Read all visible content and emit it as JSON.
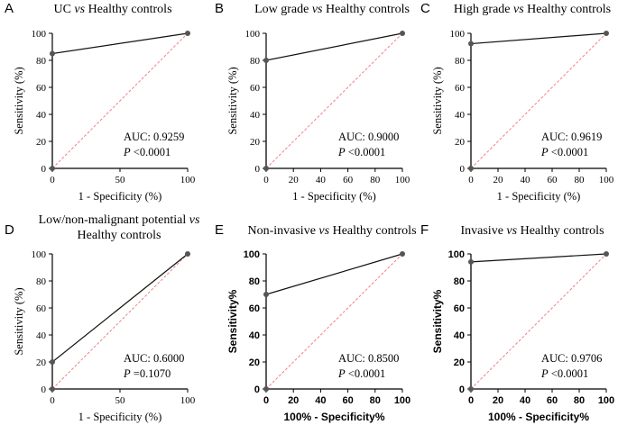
{
  "figure": {
    "style": {
      "axis_color": "#000000",
      "roc_line_color": "#111111",
      "point_color": "#555555",
      "reference_color": "#f08080"
    }
  },
  "chart_data": [
    {
      "type": "line",
      "panel_letter": "A",
      "title_parts": [
        {
          "t": "UC ",
          "i": false
        },
        {
          "t": "vs",
          "i": true
        },
        {
          "t": " Healthy controls",
          "i": false
        }
      ],
      "xlabel": "1 - Specificity (%)",
      "ylabel": "Sensitivity (%)",
      "xlim": [
        0,
        100
      ],
      "ylim": [
        0,
        100
      ],
      "x_ticks": [
        "0",
        "50",
        "100"
      ],
      "x_tick_values": [
        0,
        50,
        100
      ],
      "y_ticks": [
        "0",
        "20",
        "40",
        "60",
        "80",
        "100"
      ],
      "y_tick_values": [
        0,
        20,
        40,
        60,
        80,
        100
      ],
      "series": [
        {
          "name": "ROC",
          "x": [
            0,
            0,
            100
          ],
          "y": [
            0,
            85,
            100
          ]
        },
        {
          "name": "Reference",
          "x": [
            0,
            100
          ],
          "y": [
            0,
            100
          ]
        }
      ],
      "annotation": {
        "auc": "AUC: 0.9259",
        "p_label": "P",
        "p_value": " <0.0001"
      }
    },
    {
      "type": "line",
      "panel_letter": "B",
      "title_parts": [
        {
          "t": "Low grade ",
          "i": false
        },
        {
          "t": "vs",
          "i": true
        },
        {
          "t": " Healthy controls",
          "i": false
        }
      ],
      "xlabel": "1 - Specificity (%)",
      "ylabel": "Sensitivity (%)",
      "xlim": [
        0,
        100
      ],
      "ylim": [
        0,
        100
      ],
      "x_ticks": [
        "0",
        "20",
        "40",
        "60",
        "80",
        "100"
      ],
      "x_tick_values": [
        0,
        20,
        40,
        60,
        80,
        100
      ],
      "y_ticks": [
        "0",
        "20",
        "40",
        "60",
        "80",
        "100"
      ],
      "y_tick_values": [
        0,
        20,
        40,
        60,
        80,
        100
      ],
      "series": [
        {
          "name": "ROC",
          "x": [
            0,
            0,
            100
          ],
          "y": [
            0,
            80,
            100
          ]
        },
        {
          "name": "Reference",
          "x": [
            0,
            100
          ],
          "y": [
            0,
            100
          ]
        }
      ],
      "annotation": {
        "auc": "AUC: 0.9000",
        "p_label": "P",
        "p_value": " <0.0001"
      }
    },
    {
      "type": "line",
      "panel_letter": "C",
      "title_parts": [
        {
          "t": "High grade ",
          "i": false
        },
        {
          "t": "vs",
          "i": true
        },
        {
          "t": " Healthy controls",
          "i": false
        }
      ],
      "xlabel": "1 - Specificity (%)",
      "ylabel": "Sensitivity (%)",
      "xlim": [
        0,
        100
      ],
      "ylim": [
        0,
        100
      ],
      "x_ticks": [
        "0",
        "20",
        "40",
        "60",
        "80",
        "100"
      ],
      "x_tick_values": [
        0,
        20,
        40,
        60,
        80,
        100
      ],
      "y_ticks": [
        "0",
        "20",
        "40",
        "60",
        "80",
        "100"
      ],
      "y_tick_values": [
        0,
        20,
        40,
        60,
        80,
        100
      ],
      "series": [
        {
          "name": "ROC",
          "x": [
            0,
            0,
            100
          ],
          "y": [
            0,
            92.3,
            100
          ]
        },
        {
          "name": "Reference",
          "x": [
            0,
            100
          ],
          "y": [
            0,
            100
          ]
        }
      ],
      "annotation": {
        "auc": "AUC: 0.9619",
        "p_label": "P",
        "p_value": " <0.0001"
      }
    },
    {
      "type": "line",
      "panel_letter": "D",
      "title_parts": [
        {
          "t": "Low/non-malignant potential ",
          "i": false
        },
        {
          "t": "vs",
          "i": true
        }
      ],
      "title_line2": "Healthy controls",
      "xlabel": "1 - Specificity (%)",
      "ylabel": "Sensitivity (%)",
      "xlim": [
        0,
        100
      ],
      "ylim": [
        0,
        100
      ],
      "x_ticks": [
        "0",
        "50",
        "100"
      ],
      "x_tick_values": [
        0,
        50,
        100
      ],
      "y_ticks": [
        "0",
        "20",
        "40",
        "60",
        "80",
        "100"
      ],
      "y_tick_values": [
        0,
        20,
        40,
        60,
        80,
        100
      ],
      "series": [
        {
          "name": "ROC",
          "x": [
            0,
            0,
            100
          ],
          "y": [
            0,
            20,
            100
          ]
        },
        {
          "name": "Reference",
          "x": [
            0,
            100
          ],
          "y": [
            0,
            100
          ]
        }
      ],
      "annotation": {
        "auc": "AUC: 0.6000",
        "p_label": "P",
        "p_value": " =0.1070"
      }
    },
    {
      "type": "line",
      "panel_letter": "E",
      "title_parts": [
        {
          "t": "Non-invasive ",
          "i": false
        },
        {
          "t": "vs",
          "i": true
        },
        {
          "t": " Healthy controls",
          "i": false
        }
      ],
      "xlabel": "100% - Specificity%",
      "ylabel": "Sensitivity%",
      "xlim": [
        0,
        100
      ],
      "ylim": [
        0,
        100
      ],
      "x_ticks": [
        "0",
        "20",
        "40",
        "60",
        "80",
        "100"
      ],
      "x_tick_values": [
        0,
        20,
        40,
        60,
        80,
        100
      ],
      "y_ticks": [
        "0",
        "20",
        "40",
        "60",
        "80",
        "100"
      ],
      "y_tick_values": [
        0,
        20,
        40,
        60,
        80,
        100
      ],
      "series": [
        {
          "name": "ROC",
          "x": [
            0,
            0,
            100
          ],
          "y": [
            0,
            70,
            100
          ]
        },
        {
          "name": "Reference",
          "x": [
            0,
            100
          ],
          "y": [
            0,
            100
          ]
        }
      ],
      "annotation": {
        "auc": "AUC: 0.8500",
        "p_label": "P",
        "p_value": " <0.0001"
      }
    },
    {
      "type": "line",
      "panel_letter": "F",
      "title_parts": [
        {
          "t": "Invasive ",
          "i": false
        },
        {
          "t": "vs",
          "i": true
        },
        {
          "t": " Healthy controls",
          "i": false
        }
      ],
      "xlabel": "100% - Specificity%",
      "ylabel": "Sensitivity%",
      "xlim": [
        0,
        100
      ],
      "ylim": [
        0,
        100
      ],
      "x_ticks": [
        "0",
        "20",
        "40",
        "60",
        "80",
        "100"
      ],
      "x_tick_values": [
        0,
        20,
        40,
        60,
        80,
        100
      ],
      "y_ticks": [
        "0",
        "20",
        "40",
        "60",
        "80",
        "100"
      ],
      "y_tick_values": [
        0,
        20,
        40,
        60,
        80,
        100
      ],
      "series": [
        {
          "name": "ROC",
          "x": [
            0,
            0,
            100
          ],
          "y": [
            0,
            94.1,
            100
          ]
        },
        {
          "name": "Reference",
          "x": [
            0,
            100
          ],
          "y": [
            0,
            100
          ]
        }
      ],
      "annotation": {
        "auc": "AUC: 0.9706",
        "p_label": "P",
        "p_value": " <0.0001"
      }
    }
  ]
}
